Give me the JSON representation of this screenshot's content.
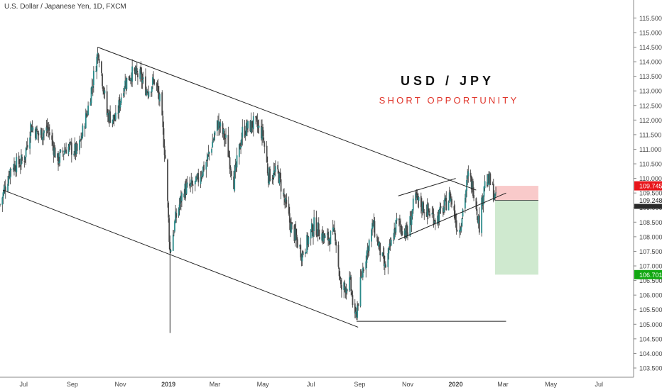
{
  "header": {
    "symbol_title": "U.S. Dollar / Japanese Yen, 1D, FXCM",
    "pair": "USD / JPY",
    "subtitle": "SHORT OPPORTUNITY"
  },
  "colors": {
    "candle_up": "#2b8a8a",
    "candle_down": "#4a4a4a",
    "wick": "#333333",
    "drawing": "#222222",
    "stop_zone": "#f9caca",
    "target_zone": "#cfe9cf",
    "stop_label_bg": "#e8161b",
    "target_label_bg": "#12a812",
    "subtitle": "#e0362c"
  },
  "chart_data": {
    "type": "candlestick",
    "x_range": [
      "2018-06-01",
      "2020-08-14"
    ],
    "y_range": [
      103.5,
      115.8
    ],
    "x_ticks": [
      {
        "label": "Jul",
        "date": "2018-07-01",
        "bold": false
      },
      {
        "label": "Sep",
        "date": "2018-09-01",
        "bold": false
      },
      {
        "label": "Nov",
        "date": "2018-11-01",
        "bold": false
      },
      {
        "label": "2019",
        "date": "2019-01-01",
        "bold": true
      },
      {
        "label": "Mar",
        "date": "2019-03-01",
        "bold": false
      },
      {
        "label": "May",
        "date": "2019-05-01",
        "bold": false
      },
      {
        "label": "Jul",
        "date": "2019-07-01",
        "bold": false
      },
      {
        "label": "Sep",
        "date": "2019-09-01",
        "bold": false
      },
      {
        "label": "Nov",
        "date": "2019-11-01",
        "bold": false
      },
      {
        "label": "2020",
        "date": "2020-01-01",
        "bold": true
      },
      {
        "label": "Mar",
        "date": "2020-03-01",
        "bold": false
      },
      {
        "label": "May",
        "date": "2020-05-01",
        "bold": false
      },
      {
        "label": "Jul",
        "date": "2020-07-01",
        "bold": false
      }
    ],
    "y_ticks": [
      "115.500",
      "115.000",
      "114.500",
      "114.000",
      "113.500",
      "113.000",
      "112.500",
      "112.000",
      "111.500",
      "111.000",
      "110.500",
      "110.000",
      "109.500",
      "109.000",
      "108.500",
      "108.000",
      "107.500",
      "107.000",
      "106.500",
      "106.000",
      "105.500",
      "105.000",
      "104.500",
      "104.000",
      "103.500"
    ],
    "price_labels": [
      {
        "text": "109.745",
        "value": 109.745,
        "kind": "stop"
      },
      {
        "text": "109.248",
        "value": 109.248,
        "kind": "current"
      },
      {
        "text": "106.701",
        "value": 106.701,
        "kind": "target"
      }
    ],
    "price_path": [
      [
        "2018-06-01",
        109.1
      ],
      [
        "2018-06-15",
        110.4
      ],
      [
        "2018-07-01",
        110.6
      ],
      [
        "2018-07-10",
        111.8
      ],
      [
        "2018-07-20",
        111.5
      ],
      [
        "2018-08-01",
        111.7
      ],
      [
        "2018-08-13",
        110.6
      ],
      [
        "2018-08-25",
        111.1
      ],
      [
        "2018-09-08",
        110.9
      ],
      [
        "2018-09-20",
        112.3
      ],
      [
        "2018-10-04",
        114.4
      ],
      [
        "2018-10-15",
        112.2
      ],
      [
        "2018-10-26",
        112.0
      ],
      [
        "2018-11-05",
        113.2
      ],
      [
        "2018-11-15",
        113.6
      ],
      [
        "2018-11-26",
        113.5
      ],
      [
        "2018-12-05",
        113.0
      ],
      [
        "2018-12-15",
        113.4
      ],
      [
        "2018-12-22",
        112.5
      ],
      [
        "2018-12-28",
        110.7
      ],
      [
        "2019-01-03",
        107.5
      ],
      [
        "2019-01-10",
        108.6
      ],
      [
        "2019-01-20",
        109.6
      ],
      [
        "2019-02-05",
        109.8
      ],
      [
        "2019-02-20",
        110.7
      ],
      [
        "2019-03-05",
        111.9
      ],
      [
        "2019-03-15",
        111.3
      ],
      [
        "2019-03-25",
        109.9
      ],
      [
        "2019-04-05",
        111.6
      ],
      [
        "2019-04-20",
        111.9
      ],
      [
        "2019-05-01",
        111.5
      ],
      [
        "2019-05-08",
        110.1
      ],
      [
        "2019-05-20",
        110.2
      ],
      [
        "2019-06-05",
        108.4
      ],
      [
        "2019-06-20",
        107.4
      ],
      [
        "2019-07-05",
        108.4
      ],
      [
        "2019-07-20",
        107.9
      ],
      [
        "2019-08-01",
        108.1
      ],
      [
        "2019-08-08",
        106.2
      ],
      [
        "2019-08-20",
        106.4
      ],
      [
        "2019-08-26",
        105.1
      ],
      [
        "2019-09-05",
        106.9
      ],
      [
        "2019-09-18",
        108.4
      ],
      [
        "2019-10-03",
        106.9
      ],
      [
        "2019-10-18",
        108.5
      ],
      [
        "2019-11-01",
        108.1
      ],
      [
        "2019-11-10",
        109.3
      ],
      [
        "2019-11-25",
        108.9
      ],
      [
        "2019-12-08",
        108.6
      ],
      [
        "2019-12-25",
        109.4
      ],
      [
        "2020-01-05",
        108.1
      ],
      [
        "2020-01-17",
        110.1
      ],
      [
        "2020-01-24",
        109.6
      ],
      [
        "2020-01-31",
        108.4
      ],
      [
        "2020-02-06",
        109.8
      ],
      [
        "2020-02-13",
        109.9
      ],
      [
        "2020-02-17",
        109.6
      ],
      [
        "2020-02-21",
        109.25
      ]
    ],
    "annotations": [
      {
        "type": "line",
        "name": "channel-upper-line",
        "points": [
          [
            "2018-10-03",
            114.5
          ],
          [
            "2020-01-27",
            109.6
          ]
        ]
      },
      {
        "type": "line",
        "name": "channel-lower-line",
        "points": [
          [
            "2018-06-05",
            109.6
          ],
          [
            "2019-08-30",
            104.9
          ]
        ]
      },
      {
        "type": "line",
        "name": "low-horizontal-line",
        "points": [
          [
            "2019-08-28",
            105.1
          ],
          [
            "2020-03-05",
            105.1
          ]
        ]
      },
      {
        "type": "line",
        "name": "wedge-upper-line",
        "points": [
          [
            "2019-10-20",
            109.4
          ],
          [
            "2020-01-01",
            110.0
          ]
        ]
      },
      {
        "type": "line",
        "name": "wedge-lower-line",
        "points": [
          [
            "2019-10-20",
            107.9
          ],
          [
            "2020-03-05",
            109.5
          ]
        ]
      },
      {
        "type": "line",
        "name": "vertical-marker-line",
        "points": [
          [
            "2019-01-03",
            104.7
          ],
          [
            "2019-01-03",
            107.6
          ]
        ]
      }
    ],
    "position": {
      "side": "short",
      "start": "2020-02-20",
      "end": "2020-04-15",
      "entry": 109.248,
      "stop": 109.745,
      "target": 106.701
    }
  }
}
